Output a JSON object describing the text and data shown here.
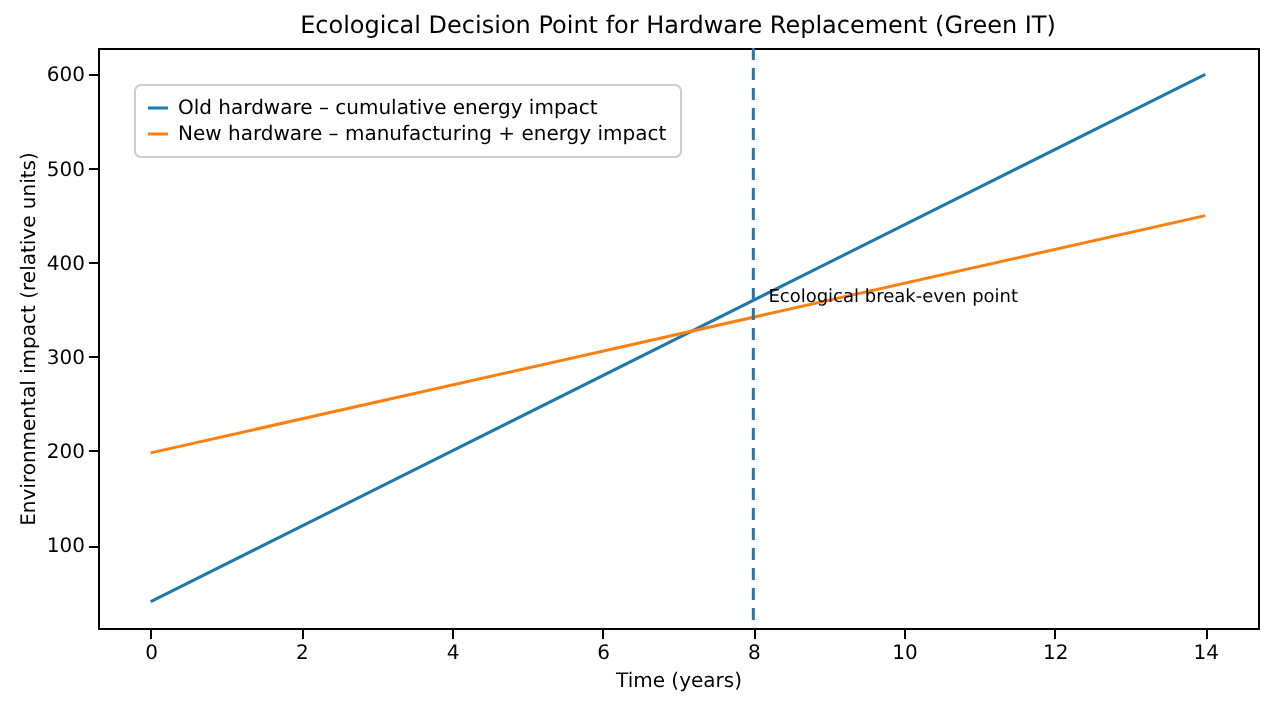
{
  "chart_data": {
    "type": "line",
    "title": "Ecological Decision Point for Hardware Replacement (Green IT)",
    "xlabel": "Time (years)",
    "ylabel": "Environmental impact (relative units)",
    "x": [
      0,
      14
    ],
    "series": [
      {
        "name": "Old hardware – cumulative energy impact",
        "color": "#1f77b4",
        "values": [
          40,
          600
        ]
      },
      {
        "name": "New hardware – manufacturing + energy impact",
        "color": "#ff7f0e",
        "values": [
          198,
          450
        ]
      }
    ],
    "xlim": [
      -0.7,
      14.7
    ],
    "xticks": [
      0,
      2,
      4,
      6,
      8,
      10,
      12,
      14
    ],
    "ylim": [
      12,
      628
    ],
    "yticks": [
      100,
      200,
      300,
      400,
      500,
      600
    ],
    "ref_lines": [
      {
        "axis": "x",
        "value": 8,
        "color": "#1f77b4",
        "line_style": "dashed"
      }
    ],
    "annotations": [
      {
        "text": "Ecological break-even point",
        "x": 8.2,
        "y": 365
      }
    ],
    "legend": "top left",
    "grid": false,
    "marker": "none",
    "line_style": "solid"
  }
}
